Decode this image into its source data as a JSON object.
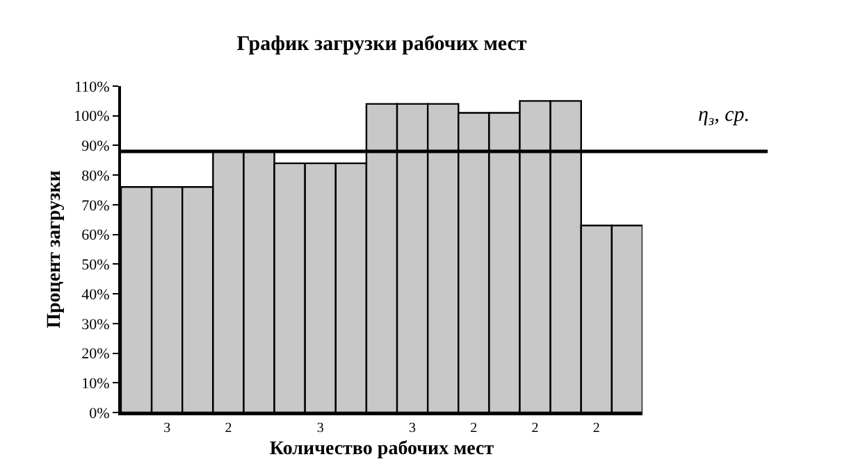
{
  "chart_data": {
    "type": "bar",
    "title": "График загрузки рабочих мест",
    "xlabel": "Количество рабочих мест",
    "ylabel": "Процент загрузки",
    "categories": [
      null,
      "3",
      null,
      "2",
      null,
      null,
      "3",
      null,
      null,
      "3",
      null,
      "2",
      null,
      "2",
      null,
      "2",
      null
    ],
    "values": [
      76,
      76,
      76,
      88,
      88,
      84,
      84,
      84,
      104,
      104,
      104,
      101,
      101,
      105,
      105,
      63,
      63
    ],
    "color": "#c8c8c8",
    "ylim": [
      0,
      110
    ],
    "yticks": [
      {
        "value": 0,
        "label": "0%"
      },
      {
        "value": 10,
        "label": "10%"
      },
      {
        "value": 20,
        "label": "20%"
      },
      {
        "value": 30,
        "label": "30%"
      },
      {
        "value": 40,
        "label": "40%"
      },
      {
        "value": 50,
        "label": "50%"
      },
      {
        "value": 60,
        "label": "60%"
      },
      {
        "value": 70,
        "label": "70%"
      },
      {
        "value": 80,
        "label": "80%"
      },
      {
        "value": 90,
        "label": "90%"
      },
      {
        "value": 100,
        "label": "100%"
      },
      {
        "value": 110,
        "label": "110%"
      }
    ],
    "ref_lines": [
      {
        "axis": "y",
        "value": 88,
        "label": "η$_{з}$, ср.",
        "color": "#000000"
      }
    ],
    "grid": false
  }
}
